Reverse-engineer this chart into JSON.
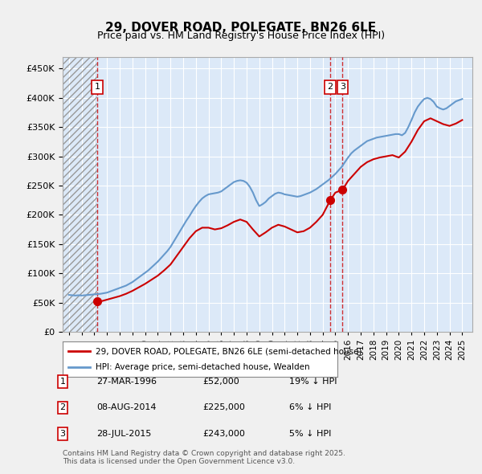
{
  "title": "29, DOVER ROAD, POLEGATE, BN26 6LE",
  "subtitle": "Price paid vs. HM Land Registry's House Price Index (HPI)",
  "ylabel_ticks": [
    "£0",
    "£50K",
    "£100K",
    "£150K",
    "£200K",
    "£250K",
    "£300K",
    "£350K",
    "£400K",
    "£450K"
  ],
  "ytick_values": [
    0,
    50000,
    100000,
    150000,
    200000,
    250000,
    300000,
    350000,
    400000,
    450000
  ],
  "ylim": [
    0,
    470000
  ],
  "xlim_start": 1993.5,
  "xlim_end": 2025.8,
  "background_color": "#dce9f8",
  "plot_bg": "#dce9f8",
  "hatch_color": "#b0b0b0",
  "grid_color": "#ffffff",
  "legend_label_red": "29, DOVER ROAD, POLEGATE, BN26 6LE (semi-detached house)",
  "legend_label_blue": "HPI: Average price, semi-detached house, Wealden",
  "transactions": [
    {
      "num": 1,
      "date": "27-MAR-1996",
      "price": 52000,
      "year": 1996.23,
      "pct": "19%",
      "dir": "↓"
    },
    {
      "num": 2,
      "date": "08-AUG-2014",
      "price": 225000,
      "year": 2014.6,
      "pct": "6%",
      "dir": "↓"
    },
    {
      "num": 3,
      "date": "28-JUL-2015",
      "price": 243000,
      "year": 2015.57,
      "pct": "5%",
      "dir": "↓"
    }
  ],
  "copyright": "Contains HM Land Registry data © Crown copyright and database right 2025.\nThis data is licensed under the Open Government Licence v3.0.",
  "hpi_data": {
    "years": [
      1994.0,
      1994.25,
      1994.5,
      1994.75,
      1995.0,
      1995.25,
      1995.5,
      1995.75,
      1996.0,
      1996.25,
      1996.5,
      1996.75,
      1997.0,
      1997.25,
      1997.5,
      1997.75,
      1998.0,
      1998.25,
      1998.5,
      1998.75,
      1999.0,
      1999.25,
      1999.5,
      1999.75,
      2000.0,
      2000.25,
      2000.5,
      2000.75,
      2001.0,
      2001.25,
      2001.5,
      2001.75,
      2002.0,
      2002.25,
      2002.5,
      2002.75,
      2003.0,
      2003.25,
      2003.5,
      2003.75,
      2004.0,
      2004.25,
      2004.5,
      2004.75,
      2005.0,
      2005.25,
      2005.5,
      2005.75,
      2006.0,
      2006.25,
      2006.5,
      2006.75,
      2007.0,
      2007.25,
      2007.5,
      2007.75,
      2008.0,
      2008.25,
      2008.5,
      2008.75,
      2009.0,
      2009.25,
      2009.5,
      2009.75,
      2010.0,
      2010.25,
      2010.5,
      2010.75,
      2011.0,
      2011.25,
      2011.5,
      2011.75,
      2012.0,
      2012.25,
      2012.5,
      2012.75,
      2013.0,
      2013.25,
      2013.5,
      2013.75,
      2014.0,
      2014.25,
      2014.5,
      2014.75,
      2015.0,
      2015.25,
      2015.5,
      2015.75,
      2016.0,
      2016.25,
      2016.5,
      2016.75,
      2017.0,
      2017.25,
      2017.5,
      2017.75,
      2018.0,
      2018.25,
      2018.5,
      2018.75,
      2019.0,
      2019.25,
      2019.5,
      2019.75,
      2020.0,
      2020.25,
      2020.5,
      2020.75,
      2021.0,
      2021.25,
      2021.5,
      2021.75,
      2022.0,
      2022.25,
      2022.5,
      2022.75,
      2023.0,
      2023.25,
      2023.5,
      2023.75,
      2024.0,
      2024.25,
      2024.5,
      2024.75,
      2025.0
    ],
    "values": [
      63000,
      62500,
      62000,
      62500,
      62000,
      62500,
      63000,
      63500,
      64000,
      64500,
      65000,
      66000,
      67000,
      69000,
      71000,
      73000,
      75000,
      77000,
      79000,
      82000,
      85000,
      89000,
      93000,
      97000,
      101000,
      105000,
      110000,
      115000,
      120000,
      126000,
      132000,
      138000,
      145000,
      154000,
      163000,
      172000,
      181000,
      190000,
      198000,
      207000,
      215000,
      222000,
      228000,
      232000,
      235000,
      236000,
      237000,
      238000,
      240000,
      244000,
      248000,
      252000,
      256000,
      258000,
      259000,
      258000,
      255000,
      248000,
      238000,
      225000,
      215000,
      218000,
      222000,
      228000,
      232000,
      236000,
      238000,
      237000,
      235000,
      234000,
      233000,
      232000,
      231000,
      232000,
      234000,
      236000,
      238000,
      241000,
      244000,
      248000,
      252000,
      256000,
      260000,
      265000,
      270000,
      276000,
      282000,
      290000,
      298000,
      305000,
      310000,
      314000,
      318000,
      322000,
      326000,
      328000,
      330000,
      332000,
      333000,
      334000,
      335000,
      336000,
      337000,
      338000,
      338000,
      336000,
      340000,
      350000,
      362000,
      375000,
      385000,
      392000,
      398000,
      400000,
      398000,
      393000,
      385000,
      382000,
      380000,
      382000,
      386000,
      390000,
      394000,
      396000,
      398000
    ]
  },
  "price_data": {
    "years": [
      1994.0,
      1994.5,
      1995.0,
      1995.5,
      1996.0,
      1996.23,
      1996.5,
      1997.0,
      1997.5,
      1998.0,
      1998.5,
      1999.0,
      1999.5,
      2000.0,
      2000.5,
      2001.0,
      2001.5,
      2002.0,
      2002.5,
      2003.0,
      2003.5,
      2004.0,
      2004.5,
      2005.0,
      2005.5,
      2006.0,
      2006.5,
      2007.0,
      2007.5,
      2008.0,
      2008.5,
      2009.0,
      2009.5,
      2010.0,
      2010.5,
      2011.0,
      2011.5,
      2012.0,
      2012.5,
      2013.0,
      2013.5,
      2014.0,
      2014.6,
      2015.0,
      2015.57,
      2016.0,
      2016.5,
      2017.0,
      2017.5,
      2018.0,
      2018.5,
      2019.0,
      2019.5,
      2020.0,
      2020.5,
      2021.0,
      2021.5,
      2022.0,
      2022.5,
      2023.0,
      2023.5,
      2024.0,
      2024.5,
      2025.0
    ],
    "values": [
      null,
      null,
      null,
      null,
      null,
      52000,
      52000,
      55000,
      58000,
      61000,
      65000,
      70000,
      76000,
      82000,
      89000,
      96000,
      105000,
      115000,
      130000,
      145000,
      160000,
      172000,
      178000,
      178000,
      175000,
      177000,
      182000,
      188000,
      192000,
      188000,
      175000,
      163000,
      170000,
      178000,
      183000,
      180000,
      175000,
      170000,
      172000,
      178000,
      188000,
      200000,
      225000,
      238000,
      243000,
      258000,
      270000,
      282000,
      290000,
      295000,
      298000,
      300000,
      302000,
      298000,
      308000,
      325000,
      345000,
      360000,
      365000,
      360000,
      355000,
      352000,
      356000,
      362000
    ]
  },
  "red_color": "#cc0000",
  "blue_color": "#6699cc",
  "marker_color": "#cc0000",
  "vline_color": "#cc0000"
}
